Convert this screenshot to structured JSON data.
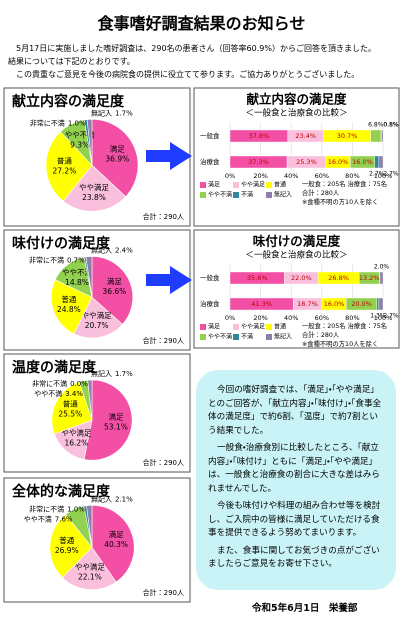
{
  "header": {
    "title": "食事嗜好調査結果のお知らせ"
  },
  "intro": [
    "5月17日に実施しました嗜好調査は、290名の患者さん（回答率60.9%）からご回答を頂きました。",
    "結果については下記のとおりです。",
    "この貴重なご意見を今後の病院食の提供に役立てて参ります。ご協力ありがとうございました。"
  ],
  "chart_data": [
    {
      "type": "pie",
      "title": "献立内容の満足度",
      "categories": [
        "満足",
        "やや満足",
        "普通",
        "やや不満",
        "非常に不満",
        "無記入"
      ],
      "values": [
        36.9,
        23.8,
        27.2,
        9.3,
        1.0,
        1.7
      ],
      "value_labels": [
        "36.9%",
        "23.8%",
        "27.2%",
        "9.3%",
        "1.0%",
        "1.7%"
      ],
      "colors": [
        "#f24fa5",
        "#f9bfdc",
        "#ffff00",
        "#92d050",
        "#31869b",
        "#8e7fa8"
      ],
      "note": "合計：290人"
    },
    {
      "type": "pie",
      "title": "味付けの満足度",
      "categories": [
        "満足",
        "やや満足",
        "普通",
        "やや不満",
        "非常に不満",
        "無記入"
      ],
      "values": [
        36.6,
        20.7,
        24.8,
        14.8,
        0.7,
        2.4
      ],
      "value_labels": [
        "36.6%",
        "20.7%",
        "24.8%",
        "14.8%",
        "0.7%",
        "2.4%"
      ],
      "colors": [
        "#f24fa5",
        "#f9bfdc",
        "#ffff00",
        "#92d050",
        "#31869b",
        "#8e7fa8"
      ],
      "note": "合計：290人"
    },
    {
      "type": "pie",
      "title": "温度の満足度",
      "categories": [
        "満足",
        "やや満足",
        "普通",
        "やや不満",
        "非常に不満",
        "無記入"
      ],
      "values": [
        53.1,
        16.2,
        25.5,
        3.4,
        0.0,
        1.7
      ],
      "value_labels": [
        "53.1%",
        "16.2%",
        "25.5%",
        "3.4%",
        "0.0%",
        "1.7%"
      ],
      "colors": [
        "#f24fa5",
        "#f9bfdc",
        "#ffff00",
        "#92d050",
        "#31869b",
        "#8e7fa8"
      ],
      "note": "合計：290人"
    },
    {
      "type": "pie",
      "title": "全体的な満足度",
      "categories": [
        "満足",
        "やや満足",
        "普通",
        "やや不満",
        "非常に不満",
        "無記入"
      ],
      "values": [
        40.3,
        22.1,
        26.9,
        7.6,
        1.0,
        2.1
      ],
      "value_labels": [
        "40.3%",
        "22.1%",
        "26.9%",
        "7.6%",
        "1.0%",
        "2.1%"
      ],
      "colors": [
        "#f24fa5",
        "#f9bfdc",
        "#ffff00",
        "#92d050",
        "#31869b",
        "#8e7fa8"
      ],
      "note": "合計：290人"
    },
    {
      "type": "bar",
      "title": "献立内容の満足度",
      "subtitle": "＜一般食と治療食の比較＞",
      "categories": [
        "一般食",
        "治療食"
      ],
      "series": [
        {
          "name": "満足",
          "color": "#f24fa5",
          "values": [
            37.8,
            37.3
          ],
          "value_labels": [
            "37.8%",
            "37.3%"
          ]
        },
        {
          "name": "やや満足",
          "color": "#f9bfdc",
          "values": [
            23.4,
            25.3
          ],
          "value_labels": [
            "23.4%",
            "25.3%"
          ]
        },
        {
          "name": "普通",
          "color": "#ffff00",
          "values": [
            30.7,
            16.0
          ],
          "value_labels": [
            "30.7%",
            "16.0%"
          ]
        },
        {
          "name": "やや不満",
          "color": "#92d050",
          "values": [
            6.8,
            16.0
          ],
          "value_labels": [
            "6.8%",
            "16.0%"
          ]
        },
        {
          "name": "不満",
          "color": "#31869b",
          "values": [
            0.5,
            2.7
          ],
          "value_labels": [
            "0.5%",
            "2.7%"
          ]
        },
        {
          "name": "無記入",
          "color": "#8e7fa8",
          "values": [
            0.8,
            2.7
          ],
          "value_labels": [
            "0.8%",
            "2.7%"
          ]
        }
      ],
      "xlim": [
        0,
        100
      ],
      "xticks": [
        {
          "value": 0,
          "label": "0%"
        },
        {
          "value": 20,
          "label": "20%"
        },
        {
          "value": 40,
          "label": "40%"
        },
        {
          "value": 60,
          "label": "60%"
        },
        {
          "value": 80,
          "label": "80%"
        },
        {
          "value": 100,
          "label": "100%"
        }
      ],
      "notes": [
        "一般食：205名 治療食：75名",
        "合計：280人",
        "※食種不明の方10人を除く"
      ]
    },
    {
      "type": "bar",
      "title": "味付けの満足度",
      "subtitle": "＜一般食と治療食の比較＞",
      "categories": [
        "一般食",
        "治療食"
      ],
      "series": [
        {
          "name": "満足",
          "color": "#f24fa5",
          "values": [
            35.6,
            41.3
          ],
          "value_labels": [
            "35.6%",
            "41.3%"
          ]
        },
        {
          "name": "やや満足",
          "color": "#f9bfdc",
          "values": [
            22.0,
            18.7
          ],
          "value_labels": [
            "22.0%",
            "18.7%"
          ]
        },
        {
          "name": "普通",
          "color": "#ffff00",
          "values": [
            26.8,
            16.0
          ],
          "value_labels": [
            "26.8%",
            "16.0%"
          ]
        },
        {
          "name": "やや不満",
          "color": "#92d050",
          "values": [
            13.2,
            20.0
          ],
          "value_labels": [
            "13.2%",
            "20.0%"
          ]
        },
        {
          "name": "不満",
          "color": "#31869b",
          "values": [
            0.4,
            1.3
          ],
          "value_labels": [
            null,
            "1.3%"
          ]
        },
        {
          "name": "無記入",
          "color": "#8e7fa8",
          "values": [
            2.0,
            2.7
          ],
          "value_labels": [
            "2.0%",
            "2.7%"
          ]
        }
      ],
      "xlim": [
        0,
        100
      ],
      "xticks": [
        {
          "value": 0,
          "label": "0%"
        },
        {
          "value": 20,
          "label": "20%"
        },
        {
          "value": 40,
          "label": "40%"
        },
        {
          "value": 60,
          "label": "60%"
        },
        {
          "value": 80,
          "label": "80%"
        },
        {
          "value": 100,
          "label": "100%"
        }
      ],
      "notes": [
        "一般食：205名 治療食：75名",
        "合計：280人",
        "※食種不明の方10人を除く"
      ]
    }
  ],
  "message": [
    "今回の嗜好調査では、「満足」・「やや満足」とのご回答が、「献立内容」・「味付け」・「食事全体の満足度」で約6割、「温度」で約7割という結果でした。",
    "一般食・治療食別に比較したところ、「献立内容」・「味付け」ともに「満足」・「やや満足」は、一般食と治療食の割合に大きな差はみられませんでした。",
    "今後も味付けや料理の組み合わせ等を検討し、ご入院中の皆様に満足していただける食事を提供できるよう努めてまいります。",
    "また、食事に関してお気づきの点がございましたらご意見をお寄せ下さい。"
  ],
  "footer": "令和5年6月1日　栄養部"
}
